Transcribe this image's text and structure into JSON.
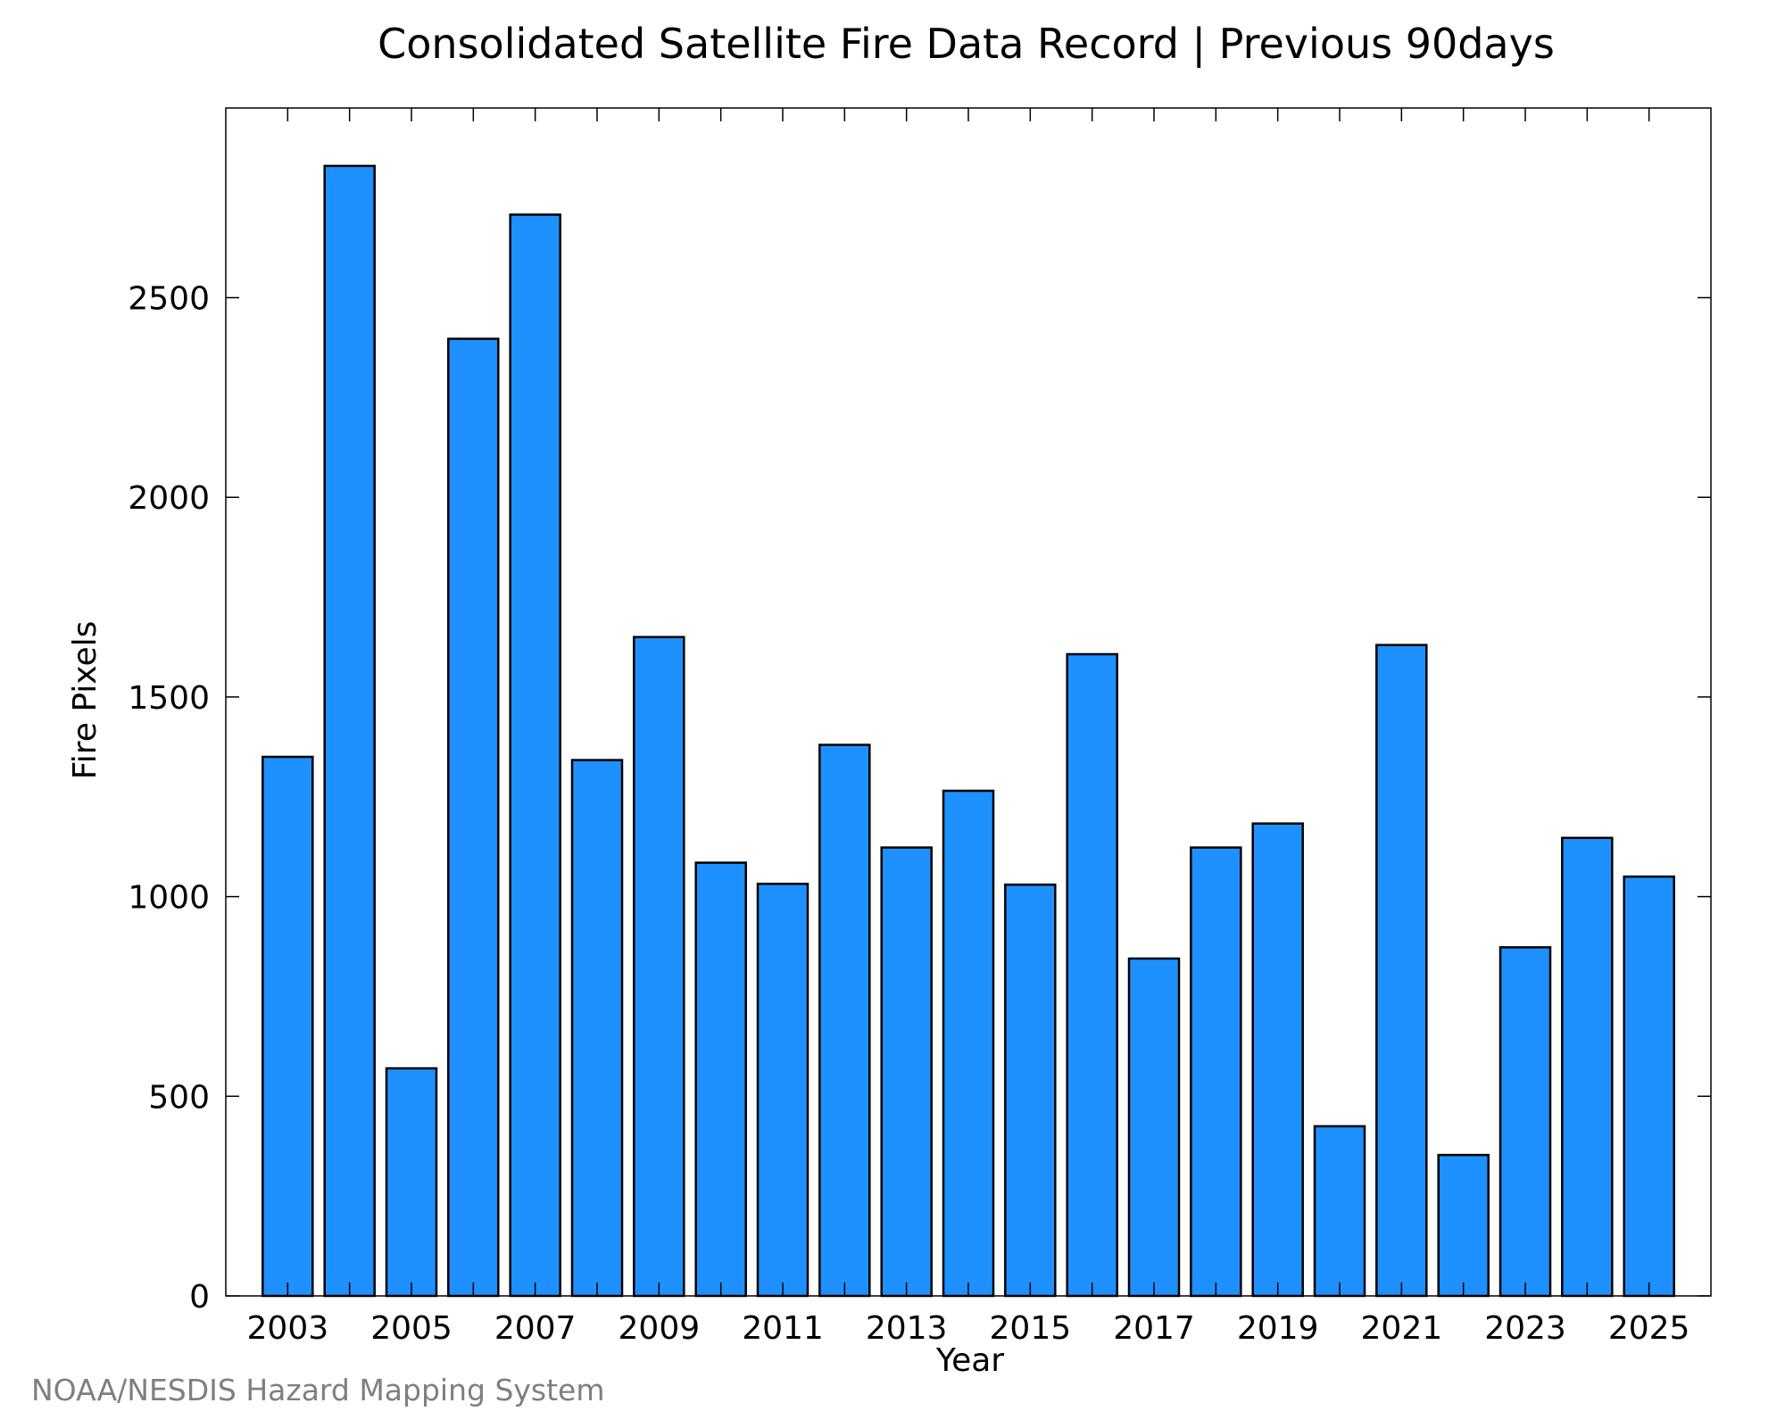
{
  "colors": {
    "bar_fill": "#1e90ff",
    "bar_stroke": "#000000",
    "axis": "#000000",
    "credit_text": "#7f7f7f"
  },
  "credit": "NOAA/NESDIS Hazard Mapping System",
  "chart_data": {
    "type": "bar",
    "title": "Consolidated Satellite Fire Data Record | Previous 90days",
    "xlabel": "Year",
    "ylabel": "Fire Pixels",
    "categories": [
      "2003",
      "2004",
      "2005",
      "2006",
      "2007",
      "2008",
      "2009",
      "2010",
      "2011",
      "2012",
      "2013",
      "2014",
      "2015",
      "2016",
      "2017",
      "2018",
      "2019",
      "2020",
      "2021",
      "2022",
      "2023",
      "2024",
      "2025"
    ],
    "x_tick_labels": [
      "2003",
      "2005",
      "2007",
      "2009",
      "2011",
      "2013",
      "2015",
      "2017",
      "2019",
      "2021",
      "2023",
      "2025"
    ],
    "values": [
      1350,
      2830,
      570,
      2397,
      2708,
      1342,
      1650,
      1085,
      1032,
      1380,
      1123,
      1265,
      1030,
      1607,
      845,
      1123,
      1183,
      425,
      1630,
      353,
      873,
      1147,
      1050
    ],
    "y_ticks": [
      0,
      500,
      1000,
      1500,
      2000,
      2500
    ],
    "ylim": [
      0,
      2975
    ],
    "xlim": [
      2002.0,
      2026.0
    ],
    "grid": false,
    "legend": "none"
  }
}
